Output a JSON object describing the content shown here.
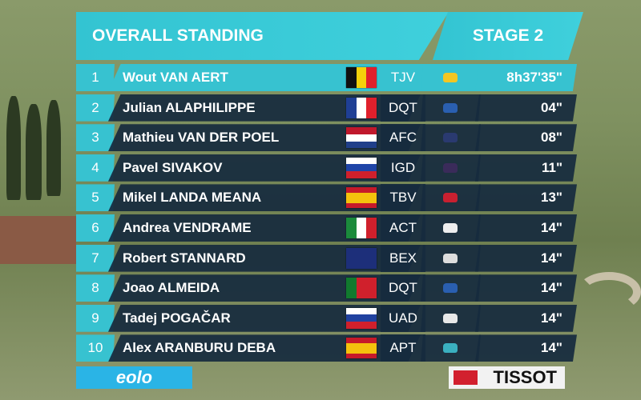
{
  "header": {
    "title": "OVERALL STANDING",
    "stage": "STAGE 2"
  },
  "table": {
    "rows": [
      [
        "1",
        "Wout VAN AERT",
        "TJV",
        "8h37'35\""
      ],
      [
        "2",
        "Julian ALAPHILIPPE",
        "DQT",
        "04\""
      ],
      [
        "3",
        "Mathieu VAN DER POEL",
        "AFC",
        "08\""
      ],
      [
        "4",
        "Pavel SIVAKOV",
        "IGD",
        "11\""
      ],
      [
        "5",
        "Mikel LANDA MEANA",
        "TBV",
        "13\""
      ],
      [
        "6",
        "Andrea VENDRAME",
        "ACT",
        "14\""
      ],
      [
        "7",
        "Robert STANNARD",
        "BEX",
        "14\""
      ],
      [
        "8",
        "Joao ALMEIDA",
        "DQT",
        "14\""
      ],
      [
        "9",
        "Tadej POGAČAR",
        "UAD",
        "14\""
      ],
      [
        "10",
        "Alex ARANBURU DEBA",
        "APT",
        "14\""
      ]
    ]
  },
  "footer": {
    "left_logo": "eolo",
    "right_logo": "TISSOT"
  }
}
